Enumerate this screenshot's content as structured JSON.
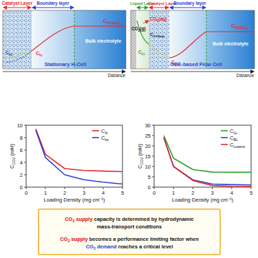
{
  "diagrams": [
    {
      "title": "Stationary H-Cell",
      "layers": [
        "Catalyst Layer",
        "Boundary layer"
      ],
      "bulk": "Bulk electrolyte",
      "distance": "Distance",
      "labels": [
        "CCO2(aq)",
        "Cfs",
        "Cbs"
      ]
    },
    {
      "title": "GDE-based Flow Cell",
      "layers": [
        "Liquid Layer",
        "Catalyst Layer",
        "Boundary layer"
      ],
      "bulk": "Bulk electrolyte",
      "distance": "Distance",
      "gas": "CO2(g)",
      "labels": [
        "CO2(aq)",
        "CCO2(aq)",
        "CLL",
        "CBL",
        "CCO2(aq)"
      ]
    }
  ],
  "chart_data": [
    {
      "type": "line",
      "x_label": "Loading Density (mg cm⁻²)",
      "y_label": "CCO2 (mM)",
      "x": [
        0.5,
        1,
        2,
        3,
        4,
        5
      ],
      "series": [
        {
          "name": "Cfs",
          "color": "#e8262a",
          "values": [
            9.4,
            5.3,
            3.0,
            2.7,
            2.6,
            2.5
          ]
        },
        {
          "name": "Cbs",
          "color": "#2b3fcf",
          "values": [
            9.2,
            4.8,
            2.0,
            1.2,
            0.8,
            0.5
          ]
        }
      ],
      "xlim": [
        0,
        5
      ],
      "xticks": [
        0,
        1,
        2,
        3,
        4,
        5
      ],
      "ylim": [
        0,
        10
      ],
      "yticks": [
        0,
        2,
        4,
        6,
        8,
        10
      ],
      "grid": false,
      "legend": "top-right",
      "line_style": "solid"
    },
    {
      "type": "line",
      "x_label": "Loading Density (mg cm⁻²)",
      "y_label": "CCO2 (mM)",
      "x": [
        0.5,
        1,
        2,
        3,
        4,
        5
      ],
      "series": [
        {
          "name": "CLL",
          "color": "#2aa02a",
          "values": [
            25,
            14,
            8.5,
            7.3,
            7.2,
            7.2
          ]
        },
        {
          "name": "CBL",
          "color": "#2b3fcf",
          "values": [
            24,
            10,
            3.5,
            1.5,
            1.2,
            1.1
          ]
        },
        {
          "name": "CLowest",
          "color": "#e8262a",
          "values": [
            24,
            10,
            3.2,
            0.8,
            0.4,
            0.3
          ]
        }
      ],
      "xlim": [
        0,
        5
      ],
      "xticks": [
        0,
        1,
        2,
        3,
        4,
        5
      ],
      "ylim": [
        0,
        30
      ],
      "yticks": [
        0,
        5,
        10,
        15,
        20,
        25,
        30
      ],
      "grid": false,
      "legend": "top-right",
      "line_style": "solid"
    }
  ],
  "summary": [
    [
      {
        "text": "CO2 supply",
        "color": "#e00000"
      },
      {
        "text": " capacity is determined by hydrodynamic",
        "color": "#111111"
      }
    ],
    [
      {
        "text": "mass-transport conditions",
        "color": "#111111"
      }
    ],
    [
      {
        "text": "CO2 supply",
        "color": "#e00000"
      },
      {
        "text": " becomes a performance limiting factor when",
        "color": "#111111"
      }
    ],
    [
      {
        "text": "CO2 demand",
        "color": "#1f3fd0"
      },
      {
        "text": " reaches a critical level",
        "color": "#111111"
      }
    ]
  ]
}
